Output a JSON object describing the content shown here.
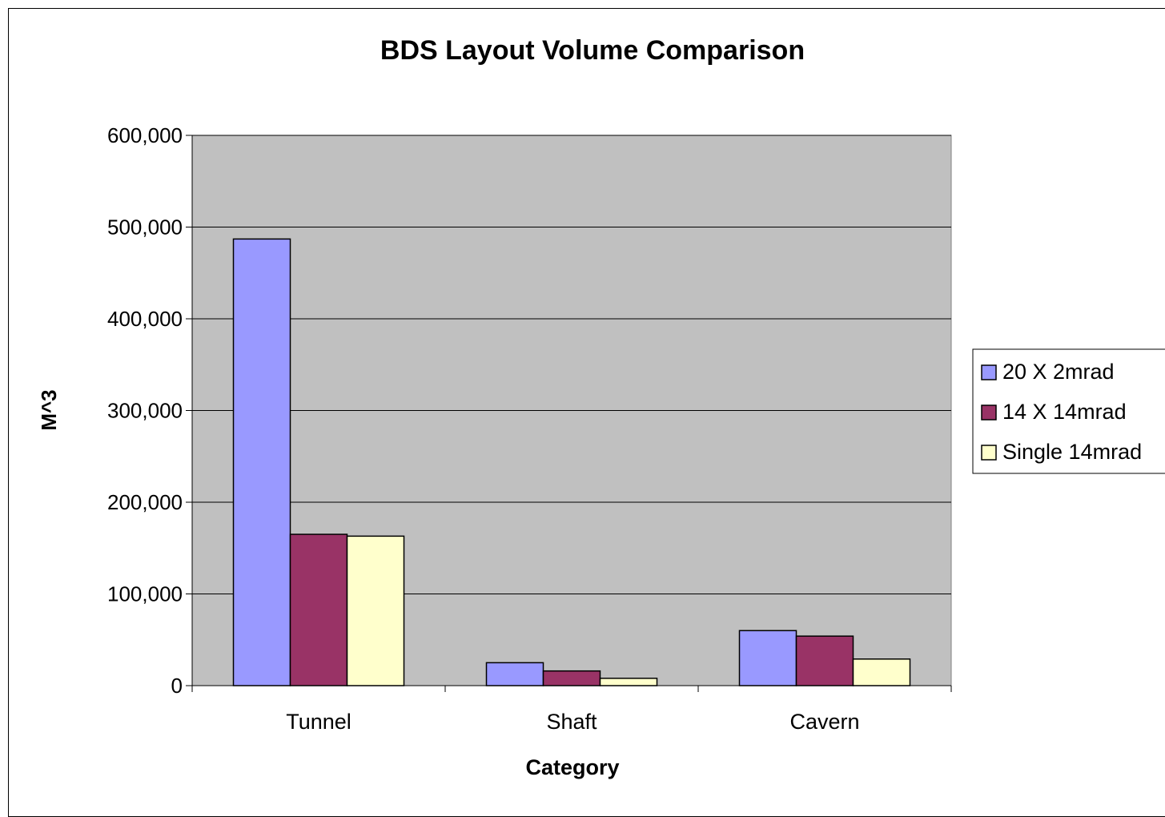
{
  "chart_data": {
    "type": "bar",
    "title": "BDS Layout Volume Comparison",
    "xlabel": "Category",
    "ylabel": "M^3",
    "categories": [
      "Tunnel",
      "Shaft",
      "Cavern"
    ],
    "ylim": [
      0,
      600000
    ],
    "yticks": [
      0,
      100000,
      200000,
      300000,
      400000,
      500000,
      600000
    ],
    "ytick_labels": [
      "0",
      "100,000",
      "200,000",
      "300,000",
      "400,000",
      "500,000",
      "600,000"
    ],
    "grid": true,
    "plot_background": "#c0c0c0",
    "legend_position": "right",
    "series": [
      {
        "name": "20 X 2mrad",
        "color": "#9999ff",
        "values": [
          487000,
          25000,
          60000
        ]
      },
      {
        "name": "14 X 14mrad",
        "color": "#993366",
        "values": [
          165000,
          16000,
          54000
        ]
      },
      {
        "name": "Single 14mrad",
        "color": "#ffffcc",
        "values": [
          163000,
          8000,
          29000
        ]
      }
    ]
  }
}
